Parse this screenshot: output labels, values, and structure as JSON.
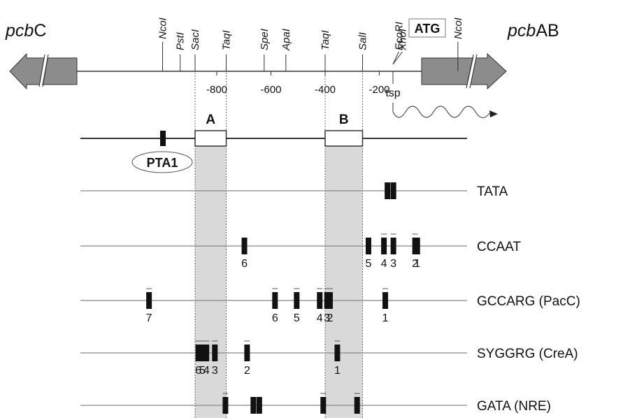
{
  "genes": {
    "left": {
      "prefix": "pcb",
      "suffix": "C"
    },
    "right": {
      "prefix": "pcb",
      "suffix": "AB"
    },
    "atg_label": "ATG"
  },
  "restriction_sites": [
    {
      "name": "NcoI",
      "pos": -1000
    },
    {
      "name": "PstI",
      "pos": -935
    },
    {
      "name": "SacI",
      "pos": -880
    },
    {
      "name": "TaqI",
      "pos": -765
    },
    {
      "name": "SpeI",
      "pos": -625
    },
    {
      "name": "ApaI",
      "pos": -545
    },
    {
      "name": "TaqI",
      "pos": -400
    },
    {
      "name": "SalI",
      "pos": -262
    },
    {
      "name": "EcoRI",
      "pos": -128
    },
    {
      "name": "XhoI",
      "pos": -115
    },
    {
      "name": "NcoI",
      "pos": 90
    }
  ],
  "scale_ticks": [
    {
      "label": "-800",
      "pos": -800
    },
    {
      "label": "-600",
      "pos": -600
    },
    {
      "label": "-400",
      "pos": -400
    },
    {
      "label": "-200",
      "pos": -200
    }
  ],
  "tsp_label": "tsp",
  "regions": [
    {
      "name": "A",
      "start": -880,
      "end": -765
    },
    {
      "name": "B",
      "start": -400,
      "end": -262
    }
  ],
  "pta1_label": "PTA1",
  "motif_tracks": [
    {
      "label": "TATA",
      "sites": [
        {
          "pos": -170,
          "num": "",
          "bar": false
        },
        {
          "pos": -148,
          "num": "",
          "bar": false
        }
      ]
    },
    {
      "label": "CCAAT",
      "sites": [
        {
          "pos": -698,
          "num": "6",
          "bar": false
        },
        {
          "pos": -240,
          "num": "5",
          "bar": false
        },
        {
          "pos": -183,
          "num": "4",
          "bar": true
        },
        {
          "pos": -148,
          "num": "3",
          "bar": true
        },
        {
          "pos": -68,
          "num": "2",
          "bar": true
        },
        {
          "pos": -60,
          "num": "1",
          "bar": false
        }
      ]
    },
    {
      "label": "GCCARG (PacC)",
      "sites": [
        {
          "pos": -1050,
          "num": "7",
          "bar": true
        },
        {
          "pos": -585,
          "num": "6",
          "bar": true
        },
        {
          "pos": -505,
          "num": "5",
          "bar": true
        },
        {
          "pos": -420,
          "num": "4",
          "bar": true
        },
        {
          "pos": -393,
          "num": "3",
          "bar": true
        },
        {
          "pos": -382,
          "num": "2",
          "bar": true
        },
        {
          "pos": -178,
          "num": "1",
          "bar": true
        }
      ]
    },
    {
      "label": "SYGGRG (CreA)",
      "sites": [
        {
          "pos": -868,
          "num": "6",
          "bar": true
        },
        {
          "pos": -853,
          "num": "5",
          "bar": true
        },
        {
          "pos": -838,
          "num": "4",
          "bar": true
        },
        {
          "pos": -807,
          "num": "3",
          "bar": true
        },
        {
          "pos": -688,
          "num": "2",
          "bar": true
        },
        {
          "pos": -355,
          "num": "1",
          "bar": true
        }
      ]
    },
    {
      "label": "GATA (NRE)",
      "sites": [
        {
          "pos": -768,
          "num": "",
          "bar": true
        },
        {
          "pos": -665,
          "num": "",
          "bar": false
        },
        {
          "pos": -643,
          "num": "",
          "bar": false
        },
        {
          "pos": -407,
          "num": "",
          "bar": true
        },
        {
          "pos": -282,
          "num": "",
          "bar": true
        }
      ]
    }
  ]
}
